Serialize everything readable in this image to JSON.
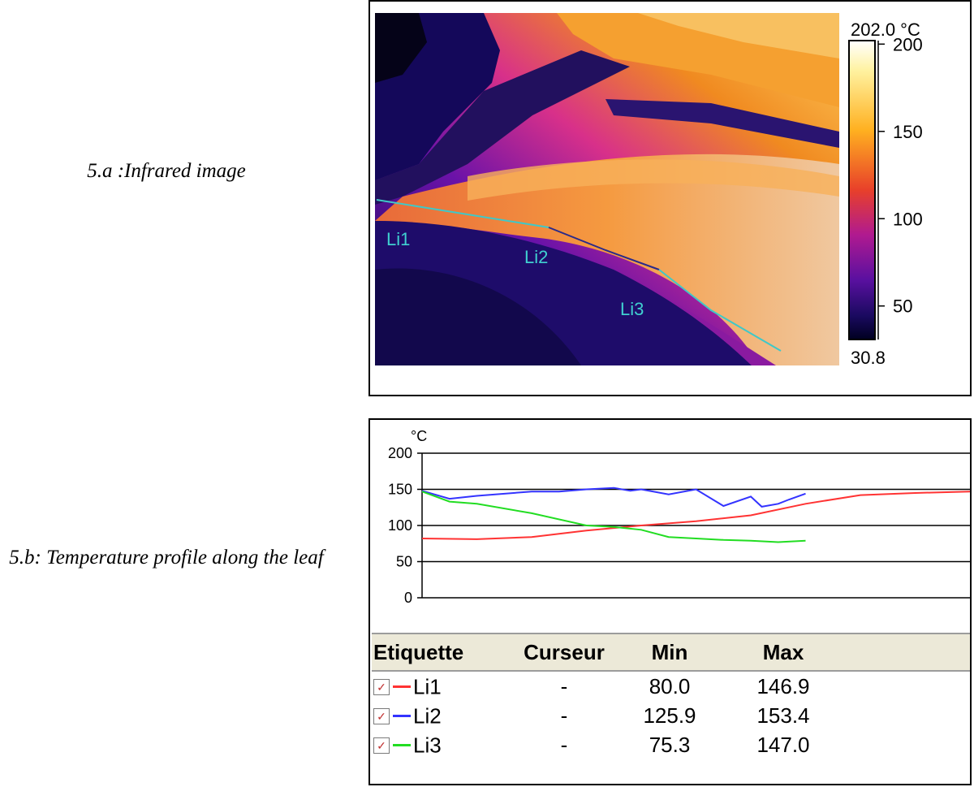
{
  "captions": {
    "a": "5.a :Infrared image",
    "b": "5.b: Temperature profile along the leaf"
  },
  "infrared": {
    "scale_max_label": "202.0 °C",
    "scale_min_label": "30.8",
    "scale_ticks": [
      "200",
      "150",
      "100",
      "50"
    ],
    "scale_tick_values": [
      200,
      150,
      100,
      50
    ],
    "scale_range": [
      30.8,
      202.0
    ],
    "line_labels": [
      "Li1",
      "Li2",
      "Li3"
    ],
    "colors": {
      "Li1": "#3fc8c8",
      "Li2": "#2a2a8a",
      "Li3": "#3fc8c8"
    }
  },
  "chart_data": {
    "type": "line",
    "ylabel": "°C",
    "ylim": [
      0,
      200
    ],
    "yticks": [
      200,
      150,
      100,
      50,
      0
    ],
    "grid": true,
    "series": [
      {
        "name": "Li1",
        "color": "#ff3333",
        "x": [
          0,
          10,
          20,
          30,
          40,
          50,
          60,
          70,
          80,
          90,
          100
        ],
        "values": [
          82,
          81,
          84,
          93,
          100,
          106,
          114,
          130,
          142,
          145,
          147
        ]
      },
      {
        "name": "Li2",
        "color": "#3333ff",
        "x": [
          0,
          5,
          10,
          20,
          25,
          30,
          35,
          38,
          40,
          45,
          50,
          55,
          60,
          62,
          65,
          67,
          70
        ],
        "values": [
          148,
          137,
          141,
          147,
          147,
          150,
          152,
          148,
          150,
          143,
          150,
          127,
          140,
          126,
          130,
          136,
          144
        ]
      },
      {
        "name": "Li3",
        "color": "#22dd22",
        "x": [
          0,
          5,
          10,
          20,
          30,
          35,
          40,
          45,
          50,
          55,
          60,
          65,
          70
        ],
        "values": [
          147,
          133,
          130,
          117,
          100,
          98,
          94,
          84,
          82,
          80,
          79,
          77,
          79
        ]
      }
    ]
  },
  "legend": {
    "headers": [
      "Etiquette",
      "Curseur",
      "Min",
      "Max"
    ],
    "rows": [
      {
        "label": "Li1",
        "cursor": "-",
        "min": "80.0",
        "max": "146.9",
        "color": "#ff3333"
      },
      {
        "label": "Li2",
        "cursor": "-",
        "min": "125.9",
        "max": "153.4",
        "color": "#3333ff"
      },
      {
        "label": "Li3",
        "cursor": "-",
        "min": "75.3",
        "max": "147.0",
        "color": "#22dd22"
      }
    ]
  }
}
